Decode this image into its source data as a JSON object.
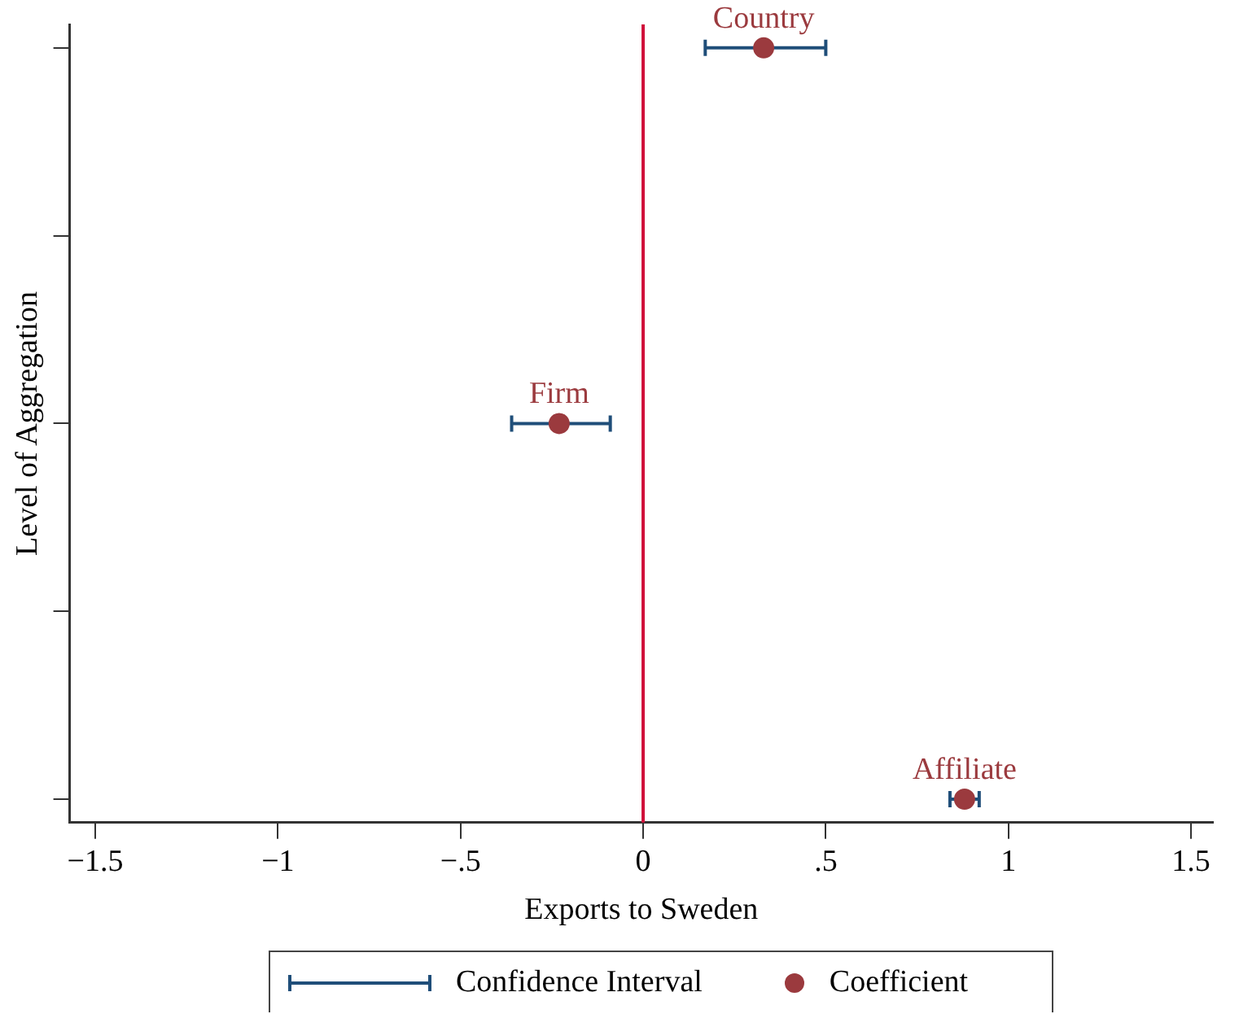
{
  "chart_data": {
    "type": "scatter",
    "orientation": "horizontal",
    "xlabel": "Exports to Sweden",
    "ylabel": "Level of Aggregation",
    "categories": [
      null,
      null,
      null,
      null,
      null
    ],
    "series": [
      {
        "name": "Confidence Interval",
        "color": "#1f4e79",
        "marker": "none",
        "values": [
          null,
          null,
          null,
          null,
          null
        ]
      },
      {
        "name": "Coefficient",
        "color": "#9b3a3e",
        "marker": "circle",
        "values": [
          0.33,
          null,
          -0.23,
          null,
          0.88
        ],
        "errors": [
          [
            0.17,
            0.5
          ],
          null,
          [
            -0.36,
            -0.09
          ],
          null,
          [
            0.84,
            0.92
          ]
        ]
      }
    ],
    "annotations": [
      "Country",
      "Firm",
      "Affiliate"
    ],
    "ref_lines": [
      {
        "axis": "x",
        "value": 0,
        "color": "#d0103a"
      }
    ],
    "xlim": [
      -1.57,
      1.56
    ],
    "xticks": [
      {
        "value": -1.5,
        "label": "−1.5"
      },
      {
        "value": -1,
        "label": "−1"
      },
      {
        "value": -0.5,
        "label": "−.5"
      },
      0,
      {
        "value": 0.5,
        "label": ".5"
      },
      1,
      1.5
    ],
    "tick_labels": "x",
    "legend": "bottom"
  }
}
